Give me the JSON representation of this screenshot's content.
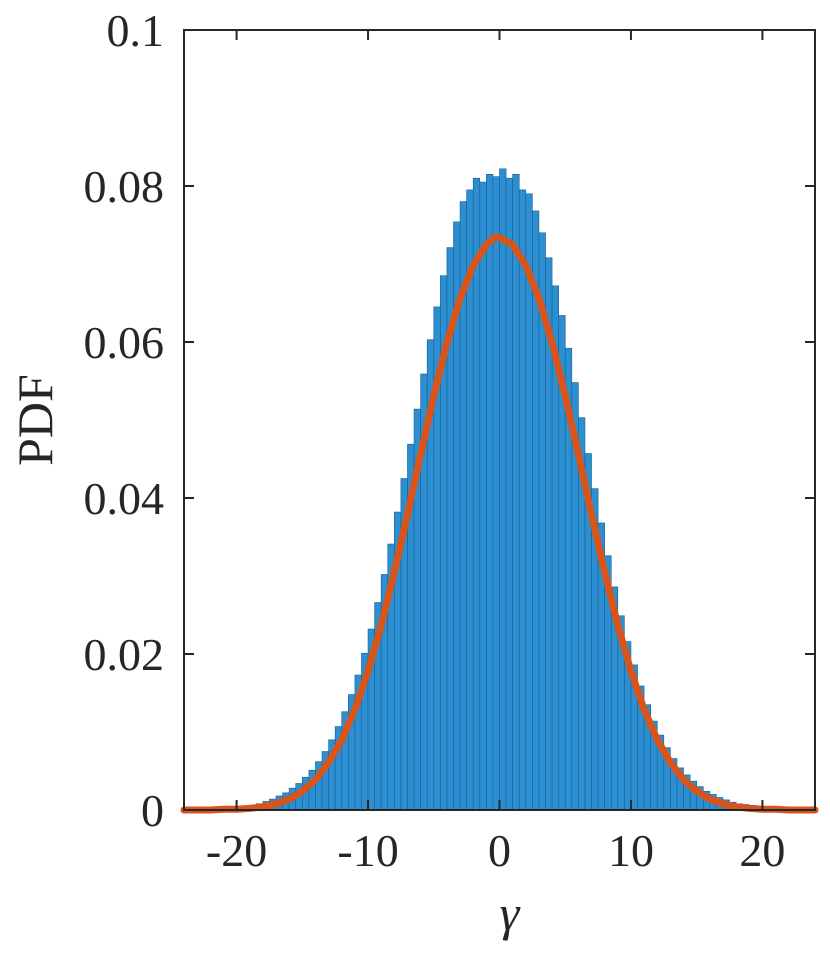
{
  "chart_data": {
    "type": "bar",
    "xlabel": "γ",
    "ylabel": "PDF",
    "xlim": [
      -24,
      24
    ],
    "ylim": [
      0,
      0.1
    ],
    "grid": false,
    "x_ticks": [
      -20,
      -10,
      0,
      10,
      20
    ],
    "x_tick_labels": [
      "-20",
      "-10",
      "0",
      "10",
      "20"
    ],
    "y_ticks": [
      0,
      0.02,
      0.04,
      0.06,
      0.08,
      0.1
    ],
    "y_tick_labels": [
      "0",
      "0.02",
      "0.04",
      "0.06",
      "0.08",
      "0.1"
    ],
    "series": [
      {
        "kind": "histogram",
        "color": "#2b8fd1",
        "edge_color": "#1a5f91",
        "bin_width": 0.5,
        "bin_centers": [
          -19.75,
          -19.25,
          -18.75,
          -18.25,
          -17.75,
          -17.25,
          -16.75,
          -16.25,
          -15.75,
          -15.25,
          -14.75,
          -14.25,
          -13.75,
          -13.25,
          -12.75,
          -12.25,
          -11.75,
          -11.25,
          -10.75,
          -10.25,
          -9.75,
          -9.25,
          -8.75,
          -8.25,
          -7.75,
          -7.25,
          -6.75,
          -6.25,
          -5.75,
          -5.25,
          -4.75,
          -4.25,
          -3.75,
          -3.25,
          -2.75,
          -2.25,
          -1.75,
          -1.25,
          -0.75,
          -0.25,
          0.25,
          0.75,
          1.25,
          1.75,
          2.25,
          2.75,
          3.25,
          3.75,
          4.25,
          4.75,
          5.25,
          5.75,
          6.25,
          6.75,
          7.25,
          7.75,
          8.25,
          8.75,
          9.25,
          9.75,
          10.25,
          10.75,
          11.25,
          11.75,
          12.25,
          12.75,
          13.25,
          13.75,
          14.25,
          14.75,
          15.25,
          15.75,
          16.25,
          16.75,
          17.25,
          17.75,
          18.25,
          18.75,
          19.25,
          19.75,
          20.25,
          20.75,
          21.25,
          21.75,
          22.25,
          22.75
        ],
        "values": [
          0.0003,
          0.0004,
          0.0006,
          0.0008,
          0.0011,
          0.0014,
          0.0018,
          0.0022,
          0.0028,
          0.0034,
          0.0042,
          0.0051,
          0.0062,
          0.0075,
          0.009,
          0.0107,
          0.0126,
          0.0148,
          0.0173,
          0.0201,
          0.0232,
          0.0266,
          0.0302,
          0.0341,
          0.0382,
          0.0425,
          0.0469,
          0.0514,
          0.0559,
          0.0603,
          0.0645,
          0.0685,
          0.0721,
          0.0754,
          0.078,
          0.0795,
          0.081,
          0.0805,
          0.0815,
          0.0812,
          0.0822,
          0.081,
          0.0815,
          0.0795,
          0.079,
          0.0768,
          0.074,
          0.0708,
          0.0672,
          0.0634,
          0.0592,
          0.0548,
          0.0503,
          0.0457,
          0.0412,
          0.0368,
          0.0326,
          0.0286,
          0.0249,
          0.0216,
          0.0186,
          0.0159,
          0.0135,
          0.0114,
          0.0096,
          0.008,
          0.0066,
          0.0054,
          0.0045,
          0.0037,
          0.003,
          0.0024,
          0.002,
          0.0016,
          0.0013,
          0.001,
          0.0008,
          0.0007,
          0.0006,
          0.0005,
          0.0004,
          0.0003,
          0.0003,
          0.0002,
          0.0002,
          0.0002
        ]
      },
      {
        "kind": "line",
        "color": "#d9541a",
        "x": [
          -24,
          -23,
          -22,
          -21,
          -20,
          -19,
          -18,
          -17,
          -16,
          -15,
          -14,
          -13,
          -12,
          -11,
          -10,
          -9,
          -8,
          -7,
          -6,
          -5,
          -4,
          -3,
          -2,
          -1,
          -0.3,
          0,
          1,
          2,
          3,
          4,
          5,
          6,
          7,
          8,
          9,
          10,
          11,
          12,
          13,
          14,
          15,
          16,
          17,
          18,
          19,
          20,
          21,
          22,
          23,
          24
        ],
        "y": [
          0.0,
          0.0,
          0.0,
          0.0001,
          0.0001,
          0.0002,
          0.0004,
          0.0008,
          0.0014,
          0.0024,
          0.0039,
          0.0061,
          0.009,
          0.0129,
          0.0178,
          0.0237,
          0.0305,
          0.0379,
          0.0456,
          0.0531,
          0.0599,
          0.0656,
          0.0698,
          0.0725,
          0.0735,
          0.0734,
          0.0725,
          0.0698,
          0.0656,
          0.0599,
          0.0531,
          0.0456,
          0.0379,
          0.0305,
          0.0237,
          0.0178,
          0.0129,
          0.009,
          0.0061,
          0.0039,
          0.0024,
          0.0014,
          0.0008,
          0.0004,
          0.0002,
          0.0001,
          0.0001,
          0.0,
          0.0,
          0.0
        ]
      }
    ]
  }
}
